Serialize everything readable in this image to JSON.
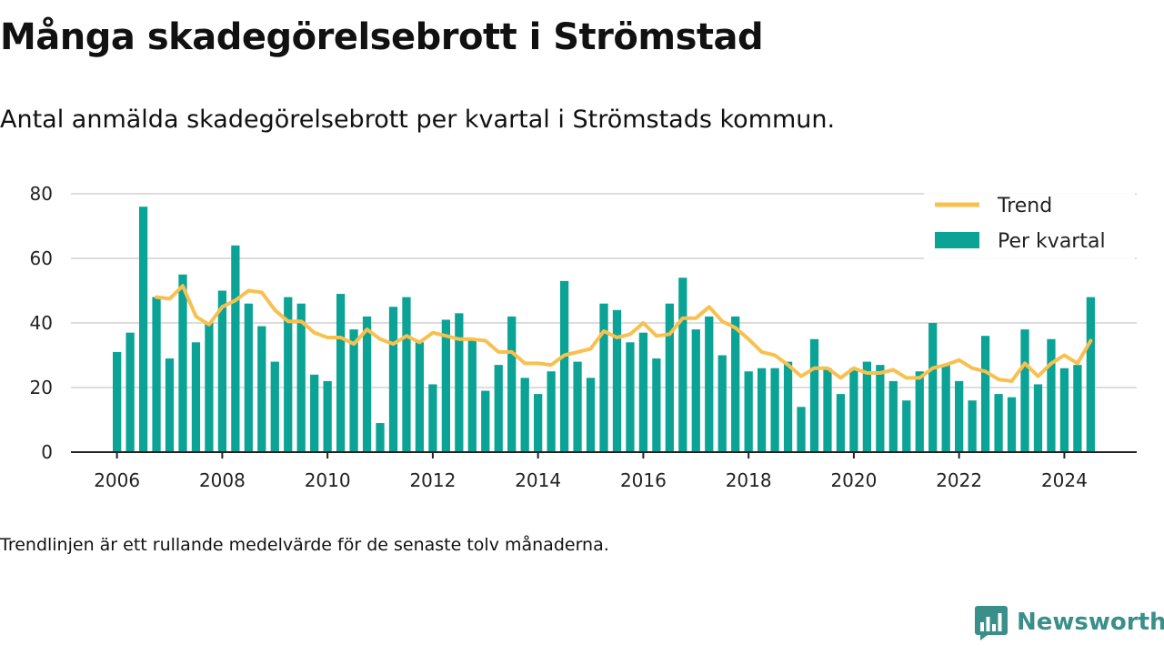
{
  "header": {
    "title": "Många skadegörelsebrott i Strömstad",
    "subtitle": "Antal anmälda skadegörelsebrott per kvartal i Strömstads kommun."
  },
  "footer": {
    "note": "Trendlinjen är ett rullande medelvärde för de senaste tolv månaderna.",
    "brand": "Newsworthy"
  },
  "colors": {
    "bar": "#0aa396",
    "trend": "#f8c04f",
    "grid": "#dddddd",
    "axis": "#222222",
    "brand": "#3a8f8a"
  },
  "icons": {
    "logo": "bar-chart-speech-bubble-icon"
  },
  "chart_data": {
    "type": "bar",
    "title": "Många skadegörelsebrott i Strömstad",
    "subtitle": "Antal anmälda skadegörelsebrott per kvartal i Strömstads kommun.",
    "xlabel": "",
    "ylabel": "",
    "ylim": [
      0,
      80
    ],
    "yticks": [
      "0",
      "20",
      "40",
      "60",
      "80"
    ],
    "xticks": [
      "2006",
      "2008",
      "2010",
      "2012",
      "2014",
      "2016",
      "2018",
      "2020",
      "2022",
      "2024"
    ],
    "xlim": [
      "2005-Q2",
      "2025-Q3"
    ],
    "grid": true,
    "legend": {
      "placement": "top-right",
      "entries": [
        {
          "label": "Trend",
          "kind": "line"
        },
        {
          "label": "Per kvartal",
          "kind": "bar"
        }
      ]
    },
    "series": [
      {
        "name": "Per kvartal",
        "kind": "bar",
        "x": [
          "2006-Q1",
          "2006-Q2",
          "2006-Q3",
          "2006-Q4",
          "2007-Q1",
          "2007-Q2",
          "2007-Q3",
          "2007-Q4",
          "2008-Q1",
          "2008-Q2",
          "2008-Q3",
          "2008-Q4",
          "2009-Q1",
          "2009-Q2",
          "2009-Q3",
          "2009-Q4",
          "2010-Q1",
          "2010-Q2",
          "2010-Q3",
          "2010-Q4",
          "2011-Q1",
          "2011-Q2",
          "2011-Q3",
          "2011-Q4",
          "2012-Q1",
          "2012-Q2",
          "2012-Q3",
          "2012-Q4",
          "2013-Q1",
          "2013-Q2",
          "2013-Q3",
          "2013-Q4",
          "2014-Q1",
          "2014-Q2",
          "2014-Q3",
          "2014-Q4",
          "2015-Q1",
          "2015-Q2",
          "2015-Q3",
          "2015-Q4",
          "2016-Q1",
          "2016-Q2",
          "2016-Q3",
          "2016-Q4",
          "2017-Q1",
          "2017-Q2",
          "2017-Q3",
          "2017-Q4",
          "2018-Q1",
          "2018-Q2",
          "2018-Q3",
          "2018-Q4",
          "2019-Q1",
          "2019-Q2",
          "2019-Q3",
          "2019-Q4",
          "2020-Q1",
          "2020-Q2",
          "2020-Q3",
          "2020-Q4",
          "2021-Q1",
          "2021-Q2",
          "2021-Q3",
          "2021-Q4",
          "2022-Q1",
          "2022-Q2",
          "2022-Q3",
          "2022-Q4",
          "2023-Q1",
          "2023-Q2",
          "2023-Q3",
          "2023-Q4",
          "2024-Q1",
          "2024-Q2",
          "2024-Q3"
        ],
        "values": [
          31,
          37,
          76,
          48,
          29,
          55,
          34,
          40,
          50,
          64,
          46,
          39,
          28,
          48,
          46,
          24,
          22,
          49,
          38,
          42,
          9,
          45,
          48,
          34,
          21,
          41,
          43,
          35,
          19,
          27,
          42,
          23,
          18,
          25,
          53,
          28,
          23,
          46,
          44,
          34,
          37,
          29,
          46,
          54,
          38,
          42,
          30,
          42,
          25,
          26,
          26,
          28,
          14,
          35,
          26,
          18,
          26,
          28,
          27,
          22,
          16,
          25,
          40,
          27,
          22,
          16,
          36,
          18,
          17,
          38,
          21,
          35,
          26,
          27,
          48
        ]
      },
      {
        "name": "Trend",
        "kind": "line",
        "x": [
          "2006-Q4",
          "2007-Q1",
          "2007-Q2",
          "2007-Q3",
          "2007-Q4",
          "2008-Q1",
          "2008-Q2",
          "2008-Q3",
          "2008-Q4",
          "2009-Q1",
          "2009-Q2",
          "2009-Q3",
          "2009-Q4",
          "2010-Q1",
          "2010-Q2",
          "2010-Q3",
          "2010-Q4",
          "2011-Q1",
          "2011-Q2",
          "2011-Q3",
          "2011-Q4",
          "2012-Q1",
          "2012-Q2",
          "2012-Q3",
          "2012-Q4",
          "2013-Q1",
          "2013-Q2",
          "2013-Q3",
          "2013-Q4",
          "2014-Q1",
          "2014-Q2",
          "2014-Q3",
          "2014-Q4",
          "2015-Q1",
          "2015-Q2",
          "2015-Q3",
          "2015-Q4",
          "2016-Q1",
          "2016-Q2",
          "2016-Q3",
          "2016-Q4",
          "2017-Q1",
          "2017-Q2",
          "2017-Q3",
          "2017-Q4",
          "2018-Q1",
          "2018-Q2",
          "2018-Q3",
          "2018-Q4",
          "2019-Q1",
          "2019-Q2",
          "2019-Q3",
          "2019-Q4",
          "2020-Q1",
          "2020-Q2",
          "2020-Q3",
          "2020-Q4",
          "2021-Q1",
          "2021-Q2",
          "2021-Q3",
          "2021-Q4",
          "2022-Q1",
          "2022-Q2",
          "2022-Q3",
          "2022-Q4",
          "2023-Q1",
          "2023-Q2",
          "2023-Q3",
          "2023-Q4",
          "2024-Q1",
          "2024-Q2",
          "2024-Q3"
        ],
        "values": [
          48,
          47.5,
          51.5,
          42,
          39.5,
          45,
          47,
          50,
          49.5,
          44,
          40.5,
          40.5,
          37,
          35.5,
          35.5,
          33.5,
          38,
          35,
          33.5,
          36,
          34,
          37,
          36,
          35,
          35,
          34.5,
          31,
          31,
          27.5,
          27.5,
          27,
          30,
          31,
          32,
          37.5,
          35.5,
          36.5,
          40,
          36,
          36.5,
          41.5,
          41.5,
          45,
          40.5,
          38.5,
          35,
          31,
          30,
          27,
          23.5,
          26,
          26,
          23,
          26,
          24.5,
          24.5,
          25.5,
          23,
          23,
          26,
          27,
          28.5,
          26,
          25,
          22.5,
          22,
          27.5,
          23.5,
          27.5,
          30,
          27.5,
          34.5
        ]
      }
    ]
  }
}
